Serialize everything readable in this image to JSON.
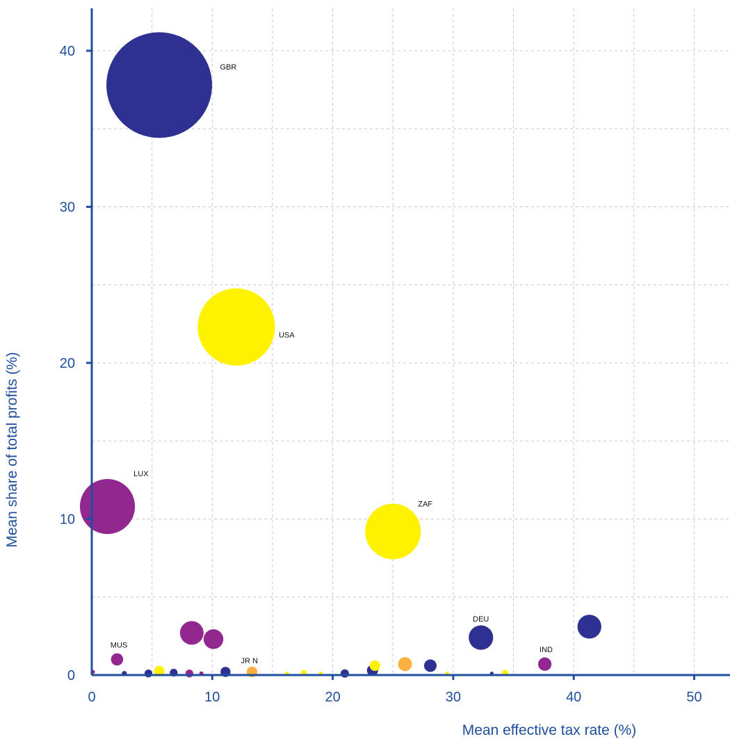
{
  "chart_data": {
    "type": "scatter",
    "subtype": "bubble",
    "title": "",
    "xlabel": "Mean effective tax rate (%)",
    "ylabel": "Mean share of total profits (%)",
    "xlim": [
      0,
      55
    ],
    "ylim": [
      0,
      42
    ],
    "x_ticks": [
      0,
      10,
      20,
      30,
      40,
      50
    ],
    "y_ticks": [
      0,
      10,
      20,
      30,
      40
    ],
    "grid": "dashed, every 5 units",
    "legend": "none",
    "colors": {
      "navy": "#2e3192",
      "purple": "#92278f",
      "yellow": "#fff200",
      "orange": "#fbb040",
      "axis": "#1f4e9c",
      "grid": "#c8c8c8"
    },
    "points": [
      {
        "x": 5.6,
        "y": 37.8,
        "size": 38.0,
        "color": "navy",
        "label": "GBR"
      },
      {
        "x": 12.0,
        "y": 22.3,
        "size": 27.8,
        "color": "yellow",
        "label": "USA"
      },
      {
        "x": 1.3,
        "y": 10.8,
        "size": 19.8,
        "color": "purple",
        "label": "LUX"
      },
      {
        "x": 25.0,
        "y": 9.2,
        "size": 20.0,
        "color": "yellow",
        "label": "ZAF"
      },
      {
        "x": 32.3,
        "y": 2.4,
        "size": 8.8,
        "color": "navy",
        "label": "DEU"
      },
      {
        "x": 41.3,
        "y": 3.1,
        "size": 8.6,
        "color": "navy",
        "label": ""
      },
      {
        "x": 37.6,
        "y": 0.7,
        "size": 4.8,
        "color": "purple",
        "label": "IND"
      },
      {
        "x": 2.1,
        "y": 1.0,
        "size": 4.4,
        "color": "purple",
        "label": "MUS"
      },
      {
        "x": 8.3,
        "y": 2.7,
        "size": 8.5,
        "color": "purple",
        "label": ""
      },
      {
        "x": 10.1,
        "y": 2.3,
        "size": 7.1,
        "color": "purple",
        "label": ""
      },
      {
        "x": 13.3,
        "y": 0.2,
        "size": 3.8,
        "color": "orange",
        "label": "JR N"
      },
      {
        "x": 23.5,
        "y": 0.6,
        "size": 3.8,
        "color": "yellow",
        "label": ""
      },
      {
        "x": 26.0,
        "y": 0.7,
        "size": 5.0,
        "color": "orange",
        "label": ""
      },
      {
        "x": 28.1,
        "y": 0.6,
        "size": 4.5,
        "color": "navy",
        "label": ""
      },
      {
        "x": 23.3,
        "y": 0.3,
        "size": 4.0,
        "color": "navy",
        "label": ""
      },
      {
        "x": 21.0,
        "y": 0.1,
        "size": 3.0,
        "color": "navy",
        "label": ""
      },
      {
        "x": 11.1,
        "y": 0.2,
        "size": 3.6,
        "color": "navy",
        "label": ""
      },
      {
        "x": 5.6,
        "y": 0.25,
        "size": 3.8,
        "color": "yellow",
        "label": ""
      },
      {
        "x": 4.7,
        "y": 0.1,
        "size": 2.8,
        "color": "navy",
        "label": ""
      },
      {
        "x": 6.8,
        "y": 0.15,
        "size": 2.8,
        "color": "navy",
        "label": ""
      },
      {
        "x": 8.1,
        "y": 0.1,
        "size": 2.8,
        "color": "purple",
        "label": ""
      },
      {
        "x": 2.7,
        "y": 0.1,
        "size": 1.8,
        "color": "navy",
        "label": ""
      },
      {
        "x": 9.1,
        "y": 0.1,
        "size": 1.5,
        "color": "purple",
        "label": ""
      },
      {
        "x": 0.1,
        "y": 0.2,
        "size": 1.4,
        "color": "purple",
        "label": ""
      },
      {
        "x": 16.2,
        "y": 0.1,
        "size": 1.4,
        "color": "yellow",
        "label": ""
      },
      {
        "x": 17.6,
        "y": 0.15,
        "size": 2.0,
        "color": "yellow",
        "label": ""
      },
      {
        "x": 19.0,
        "y": 0.1,
        "size": 1.4,
        "color": "yellow",
        "label": ""
      },
      {
        "x": 29.5,
        "y": 0.1,
        "size": 1.4,
        "color": "yellow",
        "label": ""
      },
      {
        "x": 33.2,
        "y": 0.1,
        "size": 1.3,
        "color": "navy",
        "label": ""
      },
      {
        "x": 34.3,
        "y": 0.15,
        "size": 2.2,
        "color": "yellow",
        "label": ""
      }
    ]
  }
}
